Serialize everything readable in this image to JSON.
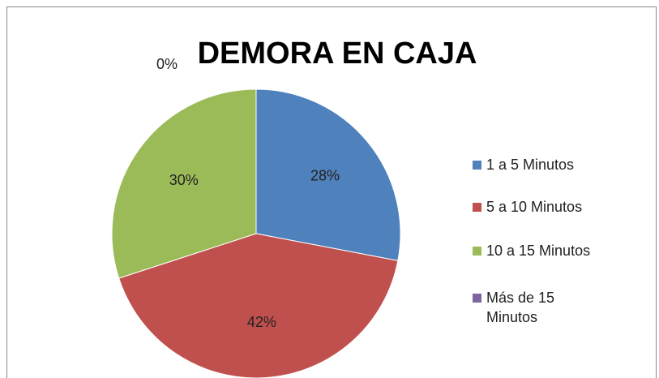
{
  "chart_data": {
    "type": "pie",
    "title": "DEMORA EN CAJA",
    "categories": [
      "1 a 5 Minutos",
      "5 a 10 Minutos",
      "10 a 15 Minutos",
      "Más de 15 Minutos"
    ],
    "values": [
      28,
      42,
      30,
      0
    ],
    "value_labels": [
      "28%",
      "42%",
      "30%",
      "0%"
    ],
    "colors": [
      "#4f81bd",
      "#c0504d",
      "#9bbb59",
      "#8064a2"
    ],
    "legend": "right"
  }
}
